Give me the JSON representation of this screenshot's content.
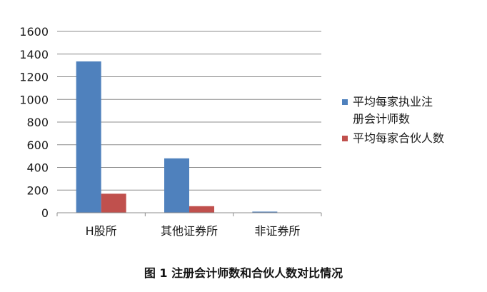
{
  "chart_data": {
    "type": "bar",
    "categories": [
      "H股所",
      "其他证券所",
      "非证券所"
    ],
    "series": [
      {
        "name": "平均每家执业注册会计师数",
        "values": [
          1335,
          480,
          10
        ],
        "color": "#4F81BD"
      },
      {
        "name": "平均每家合伙人数",
        "values": [
          168,
          58,
          0
        ],
        "color": "#C0504D"
      }
    ],
    "ylim": [
      0,
      1600
    ],
    "yticks": [
      0,
      200,
      400,
      600,
      800,
      1000,
      1200,
      1400,
      1600
    ],
    "grid": true,
    "legend_position": "right",
    "legend_lines": [
      [
        "平均每家执业注",
        "册会计师数"
      ],
      [
        "平均每家合伙人数"
      ]
    ]
  },
  "caption": "图 1   注册会计师数和合伙人数对比情况"
}
